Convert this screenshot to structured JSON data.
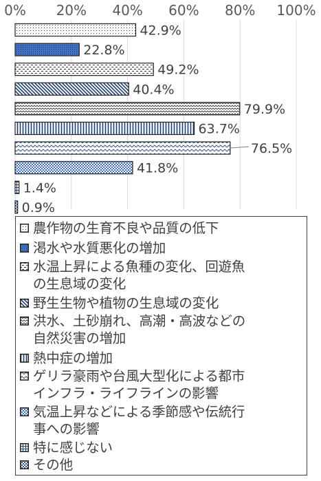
{
  "chart_data": {
    "type": "bar",
    "orientation": "horizontal",
    "categories": [
      "農作物の生育不良や品質の低下",
      "渇水や水質悪化の増加",
      "水温上昇による魚種の変化、回遊魚の生息域の変化",
      "野生生物や植物の生息域の変化",
      "洪水、土砂崩れ、高潮・高波などの自然災害の増加",
      "熱中症の増加",
      "ゲリラ豪雨や台風大型化による都市インフラ・ライフラインの影響",
      "気温上昇などによる季節感や伝統行事への影響",
      "特に感じない",
      "その他"
    ],
    "values": [
      42.9,
      22.8,
      49.2,
      40.4,
      79.9,
      63.7,
      76.5,
      41.8,
      1.4,
      0.9
    ],
    "value_labels": [
      "42.9%",
      "22.8%",
      "49.2%",
      "40.4%",
      "79.9%",
      "63.7%",
      "76.5%",
      "41.8%",
      "1.4%",
      "0.9%"
    ],
    "xlim": [
      0,
      100
    ],
    "x_ticks": [
      "0%",
      "20%",
      "40%",
      "60%",
      "80%",
      "100%"
    ],
    "grid": true,
    "legend_position": "bottom",
    "legend_labels": [
      "農作物の生育不良や品質の低下",
      "渇水や水質悪化の増加",
      "水温上昇による魚種の変化、回遊魚\nの生息域の変化",
      "野生生物や植物の生息域の変化",
      "洪水、土砂崩れ、高潮・高波などの\n自然災害の増加",
      "熱中症の増加",
      "ゲリラ豪雨や台風大型化による都市\nインフラ・ライフラインの影響",
      "気温上昇などによる季節感や伝統行\n事への影響",
      "特に感じない",
      "その他"
    ],
    "patterns": [
      "dots-sparse",
      "dots-blue",
      "dashes",
      "diagonal",
      "zigzag-fine",
      "vertical",
      "zigzag",
      "checker-blue",
      "grid",
      "checker"
    ]
  }
}
